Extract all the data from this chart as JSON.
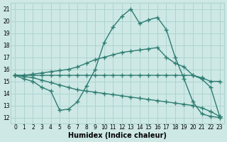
{
  "title": "",
  "xlabel": "Humidex (Indice chaleur)",
  "ylabel": "",
  "bg_color": "#cde8e5",
  "grid_color": "#afd4d0",
  "line_color": "#2e7d72",
  "xlim": [
    -0.5,
    23.5
  ],
  "ylim": [
    11.5,
    21.5
  ],
  "yticks": [
    12,
    13,
    14,
    15,
    16,
    17,
    18,
    19,
    20,
    21
  ],
  "xticks": [
    0,
    1,
    2,
    3,
    4,
    5,
    6,
    7,
    8,
    9,
    10,
    11,
    12,
    13,
    14,
    15,
    16,
    17,
    18,
    19,
    20,
    21,
    22,
    23
  ],
  "line1_x": [
    0,
    1,
    2,
    3,
    4,
    5,
    6,
    7,
    8,
    9,
    10,
    11,
    12,
    13,
    14,
    15,
    16,
    17,
    18,
    19,
    20,
    21,
    22,
    23
  ],
  "line1_y": [
    15.5,
    15.2,
    15.0,
    14.5,
    14.2,
    12.6,
    12.7,
    13.3,
    14.6,
    16.0,
    18.2,
    19.5,
    20.4,
    21.0,
    19.8,
    20.1,
    20.3,
    19.3,
    17.0,
    15.2,
    13.3,
    12.3,
    12.1,
    12.0
  ],
  "line2_x": [
    0,
    1,
    2,
    3,
    4,
    5,
    6,
    7,
    8,
    9,
    10,
    11,
    12,
    13,
    14,
    15,
    16,
    17,
    18,
    19,
    20,
    21,
    22,
    23
  ],
  "line2_y": [
    15.5,
    15.5,
    15.5,
    15.5,
    15.5,
    15.5,
    15.5,
    15.5,
    15.5,
    15.5,
    15.5,
    15.5,
    15.5,
    15.5,
    15.5,
    15.5,
    15.5,
    15.5,
    15.5,
    15.5,
    15.5,
    15.3,
    15.0,
    15.0
  ],
  "line3_x": [
    0,
    1,
    2,
    3,
    4,
    5,
    6,
    7,
    8,
    9,
    10,
    11,
    12,
    13,
    14,
    15,
    16,
    17,
    18,
    19,
    20,
    21,
    22,
    23
  ],
  "line3_y": [
    15.5,
    15.5,
    15.6,
    15.7,
    15.8,
    15.9,
    16.0,
    16.2,
    16.5,
    16.8,
    17.0,
    17.2,
    17.4,
    17.5,
    17.6,
    17.7,
    17.8,
    17.0,
    16.5,
    16.2,
    15.5,
    15.2,
    14.5,
    12.1
  ],
  "line4_x": [
    0,
    1,
    2,
    3,
    4,
    5,
    6,
    7,
    8,
    9,
    10,
    11,
    12,
    13,
    14,
    15,
    16,
    17,
    18,
    19,
    20,
    21,
    22,
    23
  ],
  "line4_y": [
    15.5,
    15.4,
    15.3,
    15.1,
    14.9,
    14.7,
    14.5,
    14.3,
    14.2,
    14.1,
    14.0,
    13.9,
    13.8,
    13.7,
    13.6,
    13.5,
    13.4,
    13.3,
    13.2,
    13.1,
    13.0,
    12.8,
    12.5,
    12.1
  ],
  "marker": "+",
  "markersize": 4,
  "linewidth": 1.0,
  "label_fontsize": 7,
  "tick_fontsize": 5.5
}
